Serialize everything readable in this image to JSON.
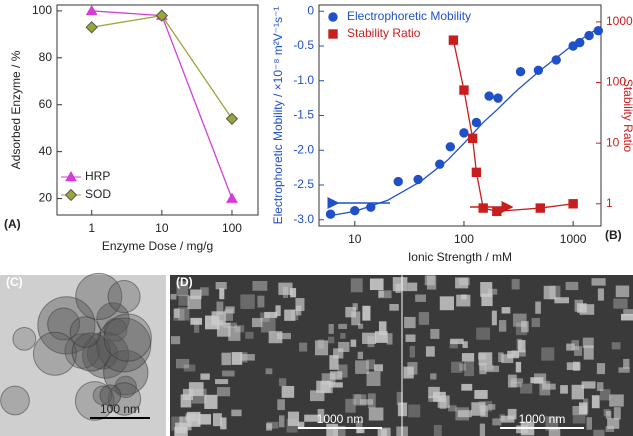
{
  "chart_data": [
    {
      "type": "line",
      "panel": "(A)",
      "xlabel": "Enzyme Dose / mg/g",
      "ylabel": "Adsorbed Enzyme / %",
      "xlog": true,
      "xlim": [
        0.32,
        235
      ],
      "xticks": [
        1,
        10,
        100
      ],
      "ylim": [
        13,
        102.5
      ],
      "yticks": [
        20,
        40,
        60,
        80,
        100
      ],
      "legend": "lower left",
      "series": [
        {
          "name": "HRP",
          "color": "#d63cd6",
          "marker": "triangle",
          "x": [
            1,
            10,
            100
          ],
          "values": [
            100,
            98,
            20
          ]
        },
        {
          "name": "SOD",
          "color": "#9aa63a",
          "marker": "diamond",
          "x": [
            1,
            10,
            100
          ],
          "values": [
            93,
            98,
            54
          ]
        }
      ]
    },
    {
      "type": "scatter",
      "panel": "(B)",
      "xlabel": "Ionic Strength / mM",
      "ylabel": "Electrophoretic Mobility / ×10⁻⁸ m²V⁻¹s⁻¹",
      "y2label": "Stability Ratio",
      "xlog": true,
      "xlim": [
        4.7,
        1800
      ],
      "xticks": [
        10,
        100,
        1000
      ],
      "ylim": [
        -3.09,
        0.09
      ],
      "yticks": [
        {
          "value": -3,
          "label": "-3.0"
        },
        -2.5,
        {
          "value": -2,
          "label": "-2.0"
        },
        -1.5,
        {
          "value": -1,
          "label": "-1.0"
        },
        -0.5,
        0
      ],
      "y_color": "#2050c8",
      "y2_color": "#c81e1e",
      "y2log": true,
      "y2lim": [
        0.43,
        1900
      ],
      "y2ticks": [
        1,
        10,
        100,
        1000
      ],
      "legend": "upper left",
      "series": [
        {
          "name": "Electrophoretic Mobility",
          "color": "#2050c8",
          "marker": "circle",
          "x": [
            6,
            10,
            14,
            25,
            38,
            60,
            75,
            100,
            130,
            170,
            205,
            330,
            480,
            700,
            1000,
            1150,
            1400,
            1700
          ],
          "values": [
            -2.92,
            -2.87,
            -2.82,
            -2.45,
            -2.42,
            -2.2,
            -1.95,
            -1.75,
            -1.6,
            -1.22,
            -1.25,
            -0.87,
            -0.85,
            -0.7,
            -0.5,
            -0.45,
            -0.35,
            -0.28
          ]
        },
        {
          "color": "#2050c8",
          "x": [
            5.5,
            10,
            20,
            40,
            70,
            100,
            150,
            200,
            300,
            500,
            800,
            1000,
            1500,
            1800
          ],
          "values": [
            -2.95,
            -2.88,
            -2.72,
            -2.45,
            -2.15,
            -1.9,
            -1.6,
            -1.42,
            -1.15,
            -0.85,
            -0.6,
            -0.48,
            -0.3,
            -0.22
          ]
        },
        {
          "name": "Stability Ratio",
          "color": "#c81e1e",
          "marker": "square",
          "axis": "y2",
          "line": true,
          "x": [
            80,
            100,
            120,
            130,
            150,
            200,
            500,
            1000
          ],
          "values": [
            500,
            75,
            12,
            3.3,
            0.85,
            0.75,
            0.85,
            1.0
          ]
        }
      ]
    }
  ],
  "images": [
    {
      "label": "(C)",
      "scale": "100 nm"
    },
    {
      "label": "(D)",
      "scale": "1000 nm",
      "scale2": "1000 nm"
    }
  ]
}
